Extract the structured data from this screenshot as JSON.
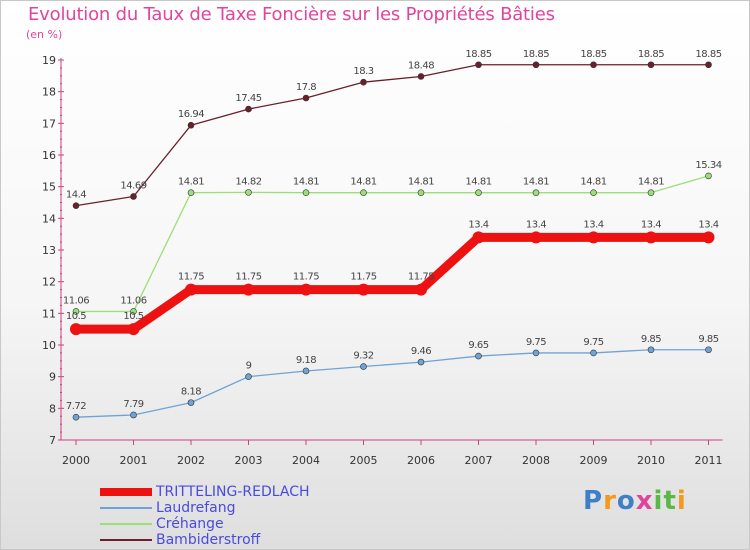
{
  "title": "Evolution du Taux de Taxe Foncière sur les Propriétés Bâties",
  "unit_label": "(en %)",
  "chart_data": {
    "type": "line",
    "title": "Evolution du Taux de Taxe Foncière sur les Propriétés Bâties",
    "ylabel": "(en %)",
    "xlabel": "",
    "ylim": [
      7,
      19
    ],
    "yticks": [
      7,
      8,
      9,
      10,
      11,
      12,
      13,
      14,
      15,
      16,
      17,
      18,
      19
    ],
    "categories": [
      "2000",
      "2001",
      "2002",
      "2003",
      "2004",
      "2005",
      "2006",
      "2007",
      "2008",
      "2009",
      "2010",
      "2011"
    ],
    "series": [
      {
        "name": "Bambiderstroff",
        "color": "#6b1f2a",
        "values": [
          14.4,
          14.69,
          16.94,
          17.45,
          17.8,
          18.3,
          18.48,
          18.85,
          18.85,
          18.85,
          18.85,
          18.85
        ]
      },
      {
        "name": "Créhange",
        "color": "#99e07a",
        "values": [
          11.06,
          11.06,
          14.81,
          14.82,
          14.81,
          14.81,
          14.81,
          14.81,
          14.81,
          14.81,
          14.81,
          15.34
        ]
      },
      {
        "name": "Laudrefang",
        "color": "#6fa3d6",
        "values": [
          7.72,
          7.79,
          8.18,
          9,
          9.18,
          9.32,
          9.46,
          9.65,
          9.75,
          9.75,
          9.85,
          9.85
        ]
      },
      {
        "name": "TRITTELING-REDLACH",
        "color": "#ee1111",
        "values": [
          10.5,
          10.5,
          11.75,
          11.75,
          11.75,
          11.75,
          11.75,
          13.4,
          13.4,
          13.4,
          13.4,
          13.4
        ]
      }
    ],
    "legend": [
      "TRITTELING-REDLACH",
      "Laudrefang",
      "Créhange",
      "Bambiderstroff"
    ],
    "legend_position": "bottom-left"
  },
  "logo": {
    "text": "Proxiti",
    "letters": [
      "P",
      "r",
      "o",
      "x",
      "i",
      "t",
      "i"
    ],
    "colors": [
      "#3d7fc8",
      "#f29a1e",
      "#3d7fc8",
      "#e0459b",
      "#59b848",
      "#59b848",
      "#f29a1e"
    ]
  }
}
